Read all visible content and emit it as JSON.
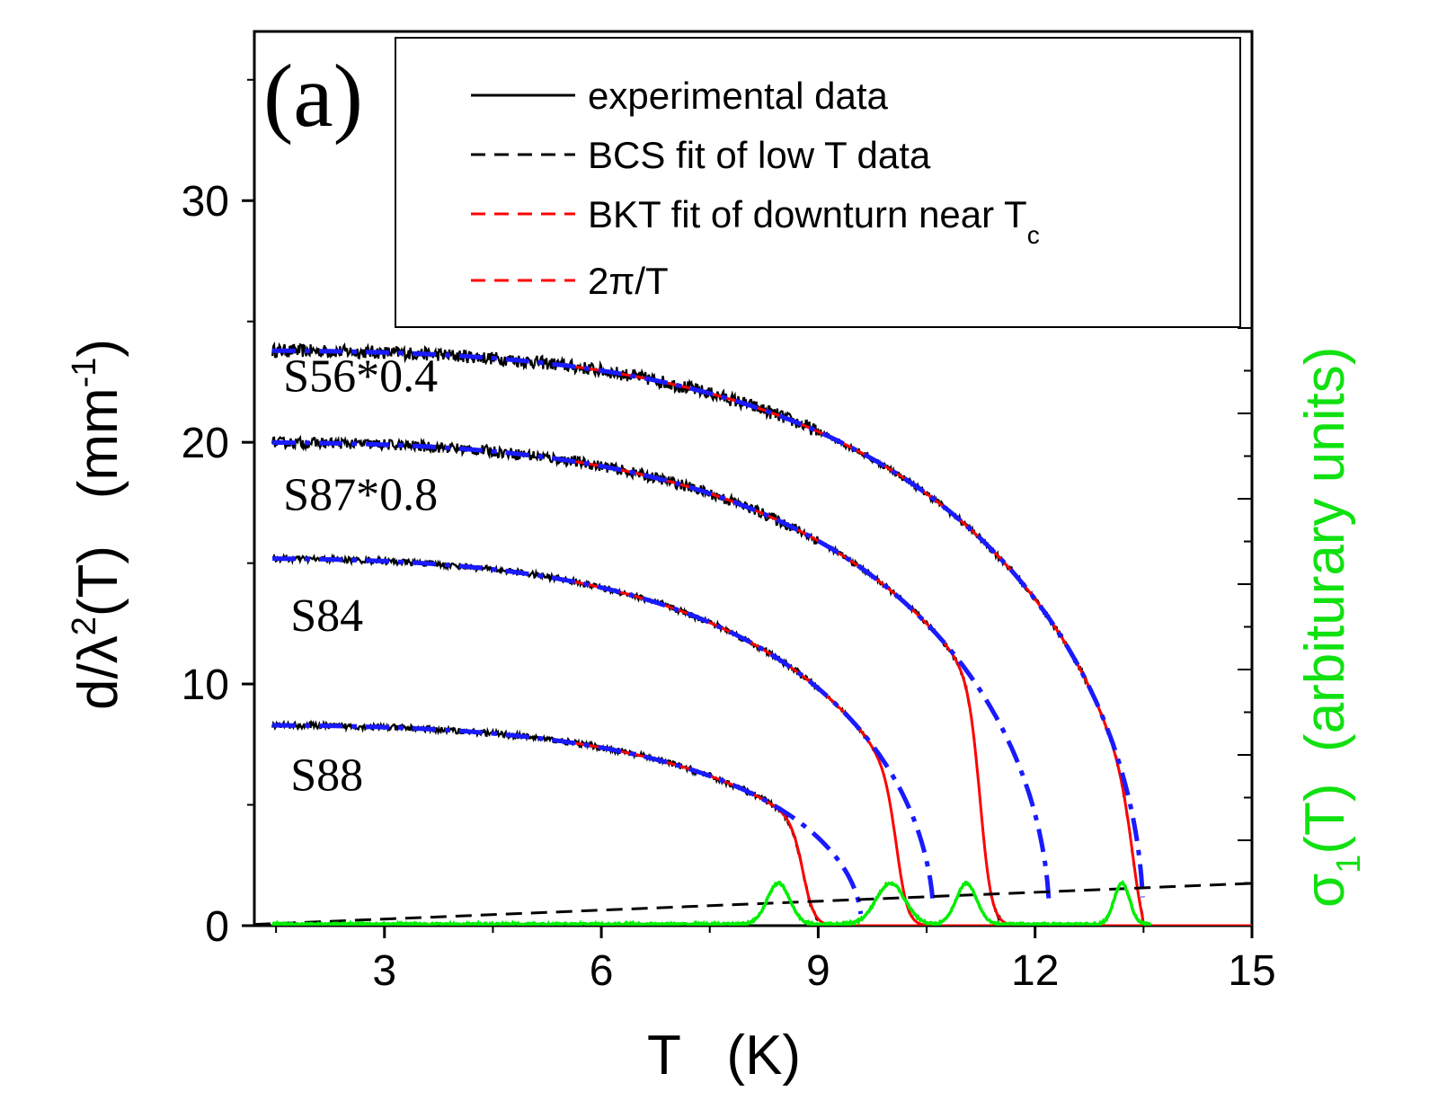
{
  "chart_data": {
    "type": "line",
    "panel_label": "(a)",
    "xlabel": "T   (K)",
    "ylabel_left": {
      "prefix": "d/",
      "lambda": "λ",
      "sup": "2",
      "middle": "(T)   (mm",
      "sup2": "-1",
      "suffix": ")"
    },
    "ylabel_right": {
      "sigma": "σ",
      "sub": "1",
      "rest": "(T)  (arbiturary units)"
    },
    "xlim": [
      1.2,
      15
    ],
    "ylim": [
      0,
      37
    ],
    "xticks": [
      3,
      6,
      9,
      12,
      15
    ],
    "yticks": [
      0,
      10,
      20,
      30
    ],
    "xtick_labels": [
      "3",
      "6",
      "9",
      "12",
      "15"
    ],
    "ytick_labels": [
      "0",
      "10",
      "20",
      "30"
    ],
    "colors": {
      "experimental": "#000000",
      "bcs": "#000000",
      "bkt": "#ff0000",
      "two_pi_over_t": "#ff0000",
      "blue_fit": "#1a1aff",
      "sigma1": "#00ee00",
      "label_green": "#11e011"
    },
    "legend": [
      {
        "label": "experimental data",
        "style": "solid",
        "color": "#000000"
      },
      {
        "label": "BCS fit of low T data",
        "style": "dashed",
        "color": "#000000"
      },
      {
        "label": "BKT fit of downturn near T",
        "sub": "c",
        "style": "dashed",
        "color": "#ff0000"
      },
      {
        "label": "2π/T",
        "style": "dashed",
        "color": "#ff0000"
      }
    ],
    "series": [
      {
        "name": "S56*0.4",
        "label": "S56*0.4",
        "y0": 23.8,
        "tc_fit": 13.5,
        "tc": 13.4,
        "label_pos": [
          1.6,
          22.1
        ]
      },
      {
        "name": "S87*0.8",
        "label": "S87*0.8",
        "y0": 20.0,
        "tc_fit": 12.2,
        "tc": 11.25,
        "label_pos": [
          1.6,
          17.2
        ]
      },
      {
        "name": "S84",
        "label": "S84",
        "y0": 15.2,
        "tc_fit": 10.6,
        "tc": 10.1,
        "label_pos": [
          1.7,
          12.2
        ]
      },
      {
        "name": "S88",
        "label": "S88",
        "y0": 8.3,
        "tc_fit": 9.6,
        "tc": 8.8,
        "label_pos": [
          1.7,
          5.6
        ]
      }
    ],
    "sigma1_peaks": [
      {
        "center": 8.45,
        "width": 0.22,
        "height": 1.7
      },
      {
        "center": 10.0,
        "width": 0.28,
        "height": 1.7
      },
      {
        "center": 11.05,
        "width": 0.2,
        "height": 1.7
      },
      {
        "center": 13.2,
        "width": 0.15,
        "height": 1.7
      }
    ],
    "two_pi_over_t_line": {
      "description": "dashed black/red",
      "y_at": [
        [
          1.2,
          0.05
        ],
        [
          15,
          1.75
        ]
      ]
    }
  }
}
